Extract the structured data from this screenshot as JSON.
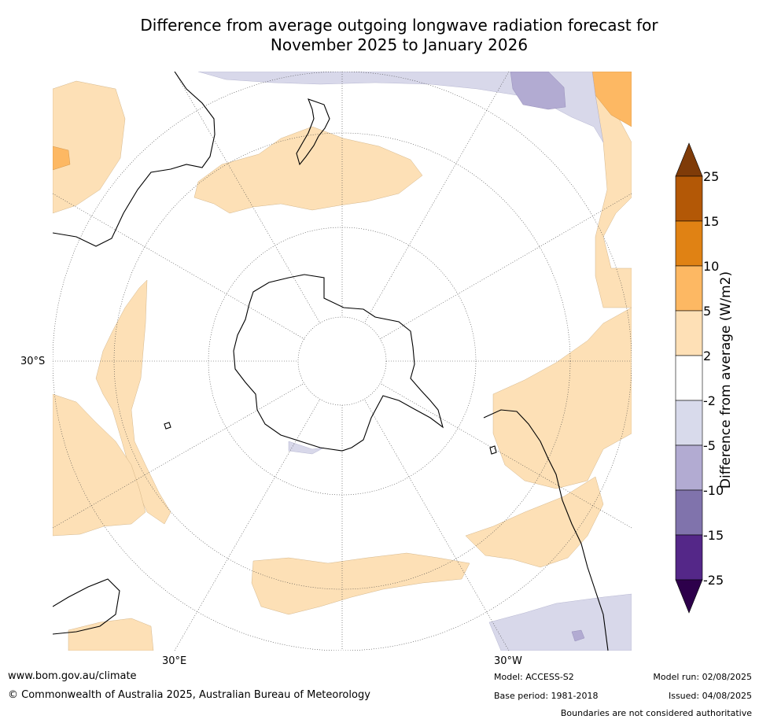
{
  "title": {
    "line1": "Difference from average outgoing longwave radiation forecast for",
    "line2": "November 2025 to January 2026"
  },
  "map": {
    "labels": {
      "lat_30s": "30°S",
      "lon_30e": "30°E",
      "lon_30w": "30°W"
    },
    "colors": {
      "ocean": "#ffffff",
      "pos_2_5": "#fde0b6",
      "pos_5_10": "#fdb863",
      "neg_2_5": "#d8d8ea",
      "neg_5_10": "#b2abd2",
      "coast": "#000000",
      "grid": "#444444"
    }
  },
  "colorbar": {
    "title": "Difference from average (W/m2)",
    "tick_labels": [
      "25",
      "15",
      "10",
      "5",
      "2",
      "-2",
      "-5",
      "-10",
      "-15",
      "-25"
    ],
    "colors": [
      "#7f3b08",
      "#b35806",
      "#e08214",
      "#fdb863",
      "#fee0b6",
      "#ffffff",
      "#d8daeb",
      "#b2abd2",
      "#8073ac",
      "#542788",
      "#2d004b"
    ]
  },
  "footer": {
    "url": "www.bom.gov.au/climate",
    "copyright": "© Commonwealth of Australia 2025, Australian Bureau of Meteorology",
    "model": "Model: ACCESS-S2",
    "base_period": "Base period: 1981-2018",
    "model_run": "Model run: 02/08/2025",
    "issued": "Issued: 04/08/2025",
    "disclaimer": "Boundaries are not considered authoritative"
  }
}
